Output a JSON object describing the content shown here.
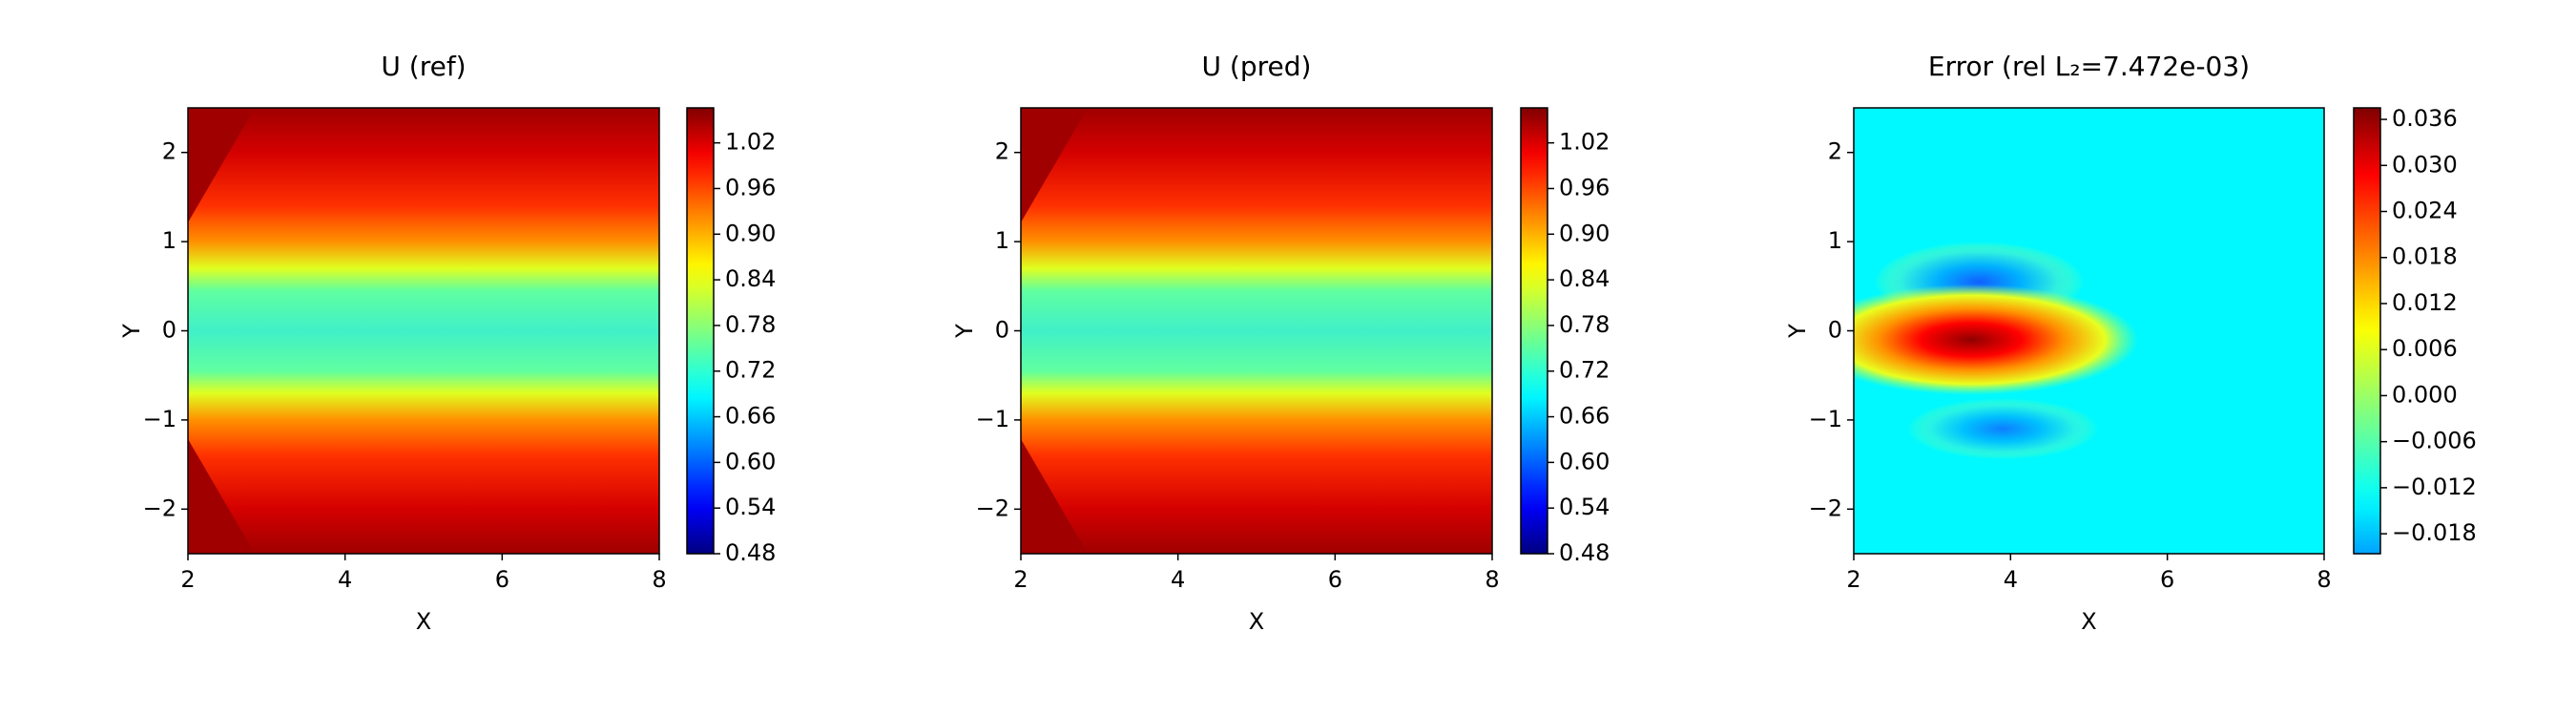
{
  "chart_data": [
    {
      "type": "contour",
      "title": "U (ref)",
      "xlabel": "X",
      "ylabel": "Y",
      "colormap": "jet",
      "xlim": [
        2,
        8
      ],
      "xticks": [
        2,
        4,
        6,
        8
      ],
      "ylim": [
        -2.5,
        2.5
      ],
      "yticks": [
        {
          "value": -2,
          "label": "−2"
        },
        {
          "value": -1,
          "label": "−1"
        },
        0,
        1,
        2
      ],
      "clim": [
        0.48,
        1.066
      ],
      "cticks": [
        0.48,
        0.54,
        {
          "value": 0.6,
          "label": "0.60"
        },
        0.66,
        0.72,
        0.78,
        0.84,
        {
          "value": 0.9,
          "label": "0.90"
        },
        0.96,
        1.02
      ]
    },
    {
      "type": "contour",
      "title": "U (pred)",
      "xlabel": "X",
      "ylabel": "Y",
      "colormap": "jet",
      "xlim": [
        2,
        8
      ],
      "xticks": [
        2,
        4,
        6,
        8
      ],
      "ylim": [
        -2.5,
        2.5
      ],
      "yticks": [
        {
          "value": -2,
          "label": "−2"
        },
        {
          "value": -1,
          "label": "−1"
        },
        0,
        1,
        2
      ],
      "clim": [
        0.48,
        1.066
      ],
      "cticks": [
        0.48,
        0.54,
        {
          "value": 0.6,
          "label": "0.60"
        },
        0.66,
        0.72,
        0.78,
        0.84,
        {
          "value": 0.9,
          "label": "0.90"
        },
        0.96,
        1.02
      ]
    },
    {
      "type": "contour",
      "title": "Error (rel L₂=7.472e-03)",
      "xlabel": "X",
      "ylabel": "Y",
      "colormap": "jet",
      "xlim": [
        2,
        8
      ],
      "xticks": [
        2,
        4,
        6,
        8
      ],
      "ylim": [
        -2.5,
        2.5
      ],
      "yticks": [
        {
          "value": -2,
          "label": "−2"
        },
        {
          "value": -1,
          "label": "−1"
        },
        0,
        1,
        2
      ],
      "clim": [
        -0.0206,
        0.0375
      ],
      "cticks": [
        {
          "value": -0.018,
          "label": "−0.018"
        },
        {
          "value": -0.012,
          "label": "−0.012"
        },
        {
          "value": -0.006,
          "label": "−0.006"
        },
        {
          "value": 0,
          "label": "0.000"
        },
        0.006,
        0.012,
        0.018,
        0.024,
        {
          "value": 0.03,
          "label": "0.030"
        },
        0.036
      ]
    }
  ]
}
